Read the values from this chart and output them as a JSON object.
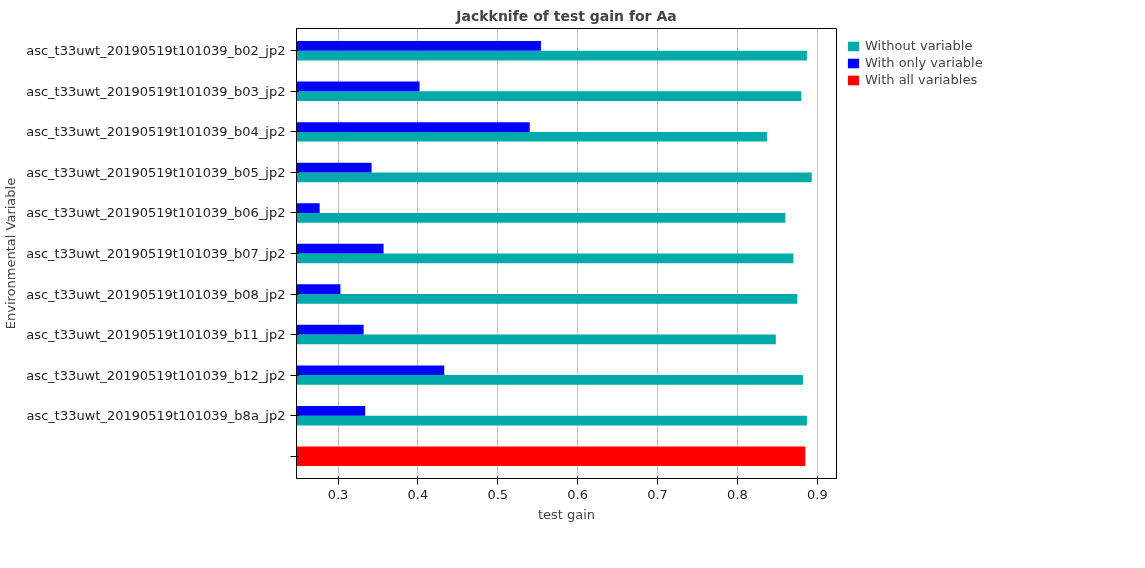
{
  "chart_data": {
    "type": "bar",
    "orientation": "horizontal",
    "title": "Jackknife of test gain for Aa",
    "xlabel": "test gain",
    "ylabel": "Environmental Variable",
    "categories": [
      "asc_t33uwt_20190519t101039_b02_jp2",
      "asc_t33uwt_20190519t101039_b03_jp2",
      "asc_t33uwt_20190519t101039_b04_jp2",
      "asc_t33uwt_20190519t101039_b05_jp2",
      "asc_t33uwt_20190519t101039_b06_jp2",
      "asc_t33uwt_20190519t101039_b07_jp2",
      "asc_t33uwt_20190519t101039_b08_jp2",
      "asc_t33uwt_20190519t101039_b11_jp2",
      "asc_t33uwt_20190519t101039_b12_jp2",
      "asc_t33uwt_20190519t101039_b8a_jp2",
      null
    ],
    "series": [
      {
        "name": "Without variable",
        "color": "#00aaaa",
        "values": [
          0.887,
          0.88,
          0.837,
          0.893,
          0.86,
          0.87,
          0.875,
          0.848,
          0.882,
          0.887,
          null
        ]
      },
      {
        "name": "With only variable",
        "color": "#0000ff",
        "values": [
          0.554,
          0.402,
          0.54,
          0.342,
          0.277,
          0.357,
          0.303,
          0.332,
          0.433,
          0.334,
          null
        ]
      },
      {
        "name": "With all variables",
        "color": "#ff0000",
        "values": [
          null,
          null,
          null,
          null,
          null,
          null,
          null,
          null,
          null,
          null,
          0.885
        ]
      }
    ],
    "xlim": [
      0.248,
      0.924
    ],
    "xticks": [
      0.3,
      0.4,
      0.5,
      0.6,
      0.7,
      0.8,
      0.9
    ],
    "grid": "x",
    "legend": "top right"
  }
}
